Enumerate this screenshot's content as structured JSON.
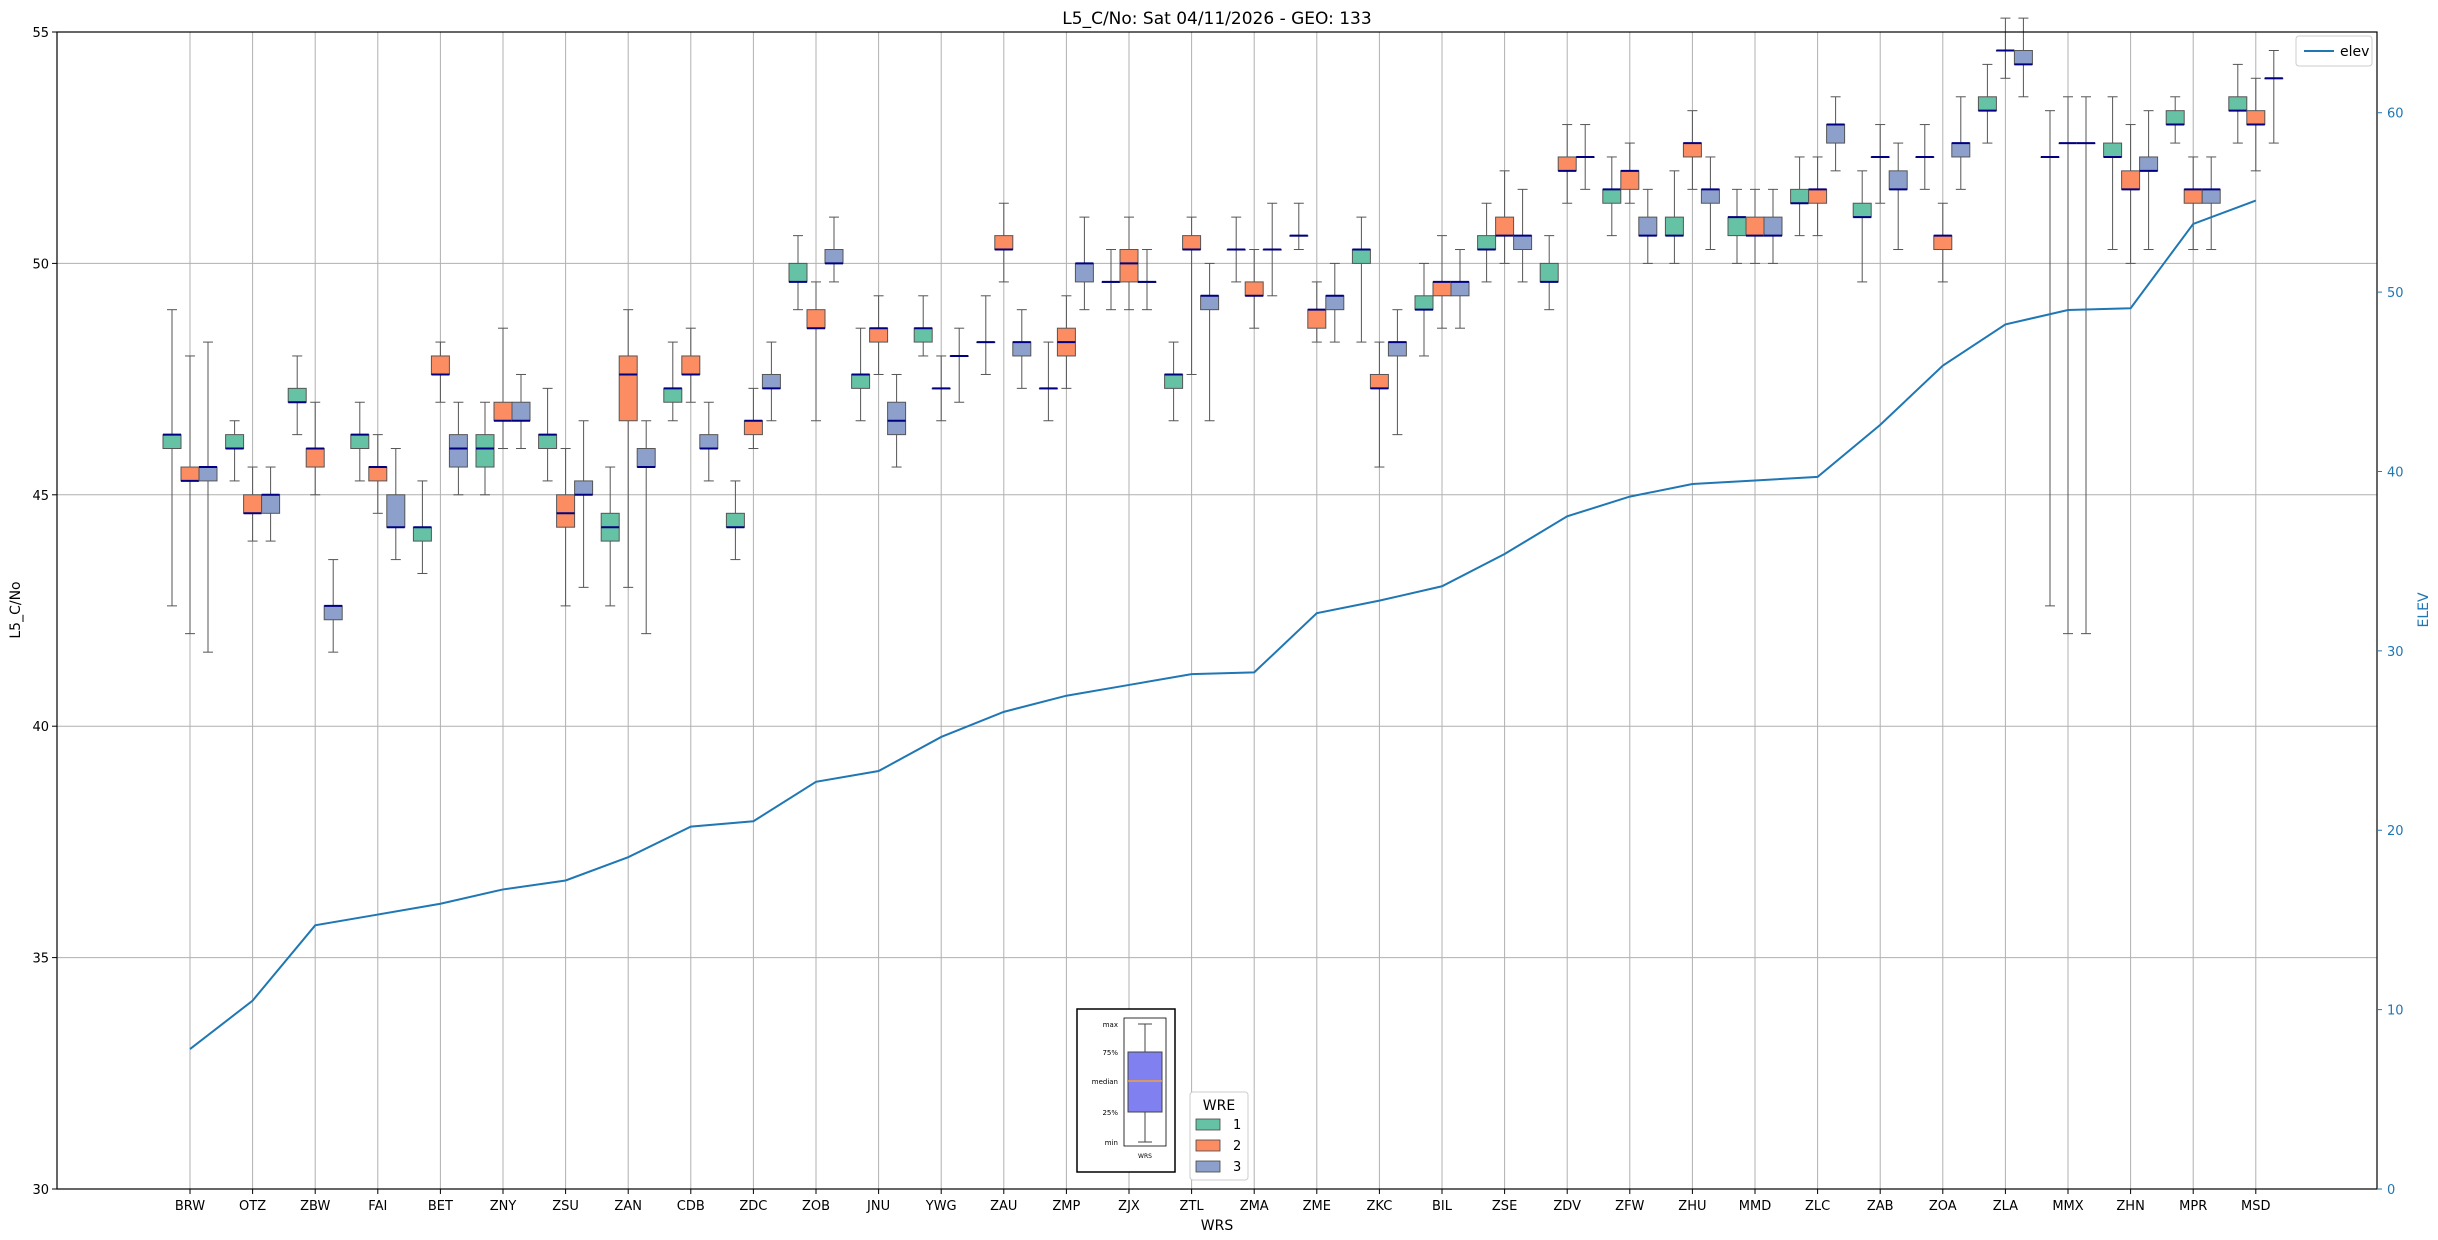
{
  "chart_data": {
    "type": "box",
    "title": "L5_C/No: Sat 04/11/2026 - GEO: 133",
    "xlabel": "WRS",
    "ylabel": "L5_C/No",
    "ylabel_right": "ELEV",
    "ylim": [
      30,
      55
    ],
    "ylim_right": [
      0,
      64.5
    ],
    "yticks": [
      30,
      35,
      40,
      45,
      50,
      55
    ],
    "yticks_right": [
      0,
      10,
      20,
      30,
      40,
      50,
      60
    ],
    "grid": true,
    "categories": [
      "BRW",
      "OTZ",
      "ZBW",
      "FAI",
      "BET",
      "ZNY",
      "ZSU",
      "ZAN",
      "CDB",
      "ZDC",
      "ZOB",
      "JNU",
      "YWG",
      "ZAU",
      "ZMP",
      "ZJX",
      "ZTL",
      "ZMA",
      "ZME",
      "ZKC",
      "BIL",
      "ZSE",
      "ZDV",
      "ZFW",
      "ZHU",
      "MMD",
      "ZLC",
      "ZAB",
      "ZOA",
      "ZLA",
      "MMX",
      "ZHN",
      "MPR",
      "MSD"
    ],
    "wre_colors": {
      "1": "#66c2a5",
      "2": "#fc8d62",
      "3": "#8da0cb"
    },
    "boxes": [
      {
        "station": "BRW",
        "wre": 1,
        "min": 42.6,
        "q1": 46.0,
        "median": 46.3,
        "q3": 46.3,
        "max": 49.0
      },
      {
        "station": "BRW",
        "wre": 2,
        "min": 42.0,
        "q1": 45.3,
        "median": 45.3,
        "q3": 45.6,
        "max": 48.0
      },
      {
        "station": "BRW",
        "wre": 3,
        "min": 41.6,
        "q1": 45.3,
        "median": 45.6,
        "q3": 45.6,
        "max": 48.3
      },
      {
        "station": "OTZ",
        "wre": 1,
        "min": 45.3,
        "q1": 46.0,
        "median": 46.0,
        "q3": 46.3,
        "max": 46.6
      },
      {
        "station": "OTZ",
        "wre": 2,
        "min": 44.0,
        "q1": 44.6,
        "median": 44.6,
        "q3": 45.0,
        "max": 45.6
      },
      {
        "station": "OTZ",
        "wre": 3,
        "min": 44.0,
        "q1": 44.6,
        "median": 45.0,
        "q3": 45.0,
        "max": 45.6
      },
      {
        "station": "ZBW",
        "wre": 1,
        "min": 46.3,
        "q1": 47.0,
        "median": 47.0,
        "q3": 47.3,
        "max": 48.0
      },
      {
        "station": "ZBW",
        "wre": 2,
        "min": 45.0,
        "q1": 45.6,
        "median": 46.0,
        "q3": 46.0,
        "max": 47.0
      },
      {
        "station": "ZBW",
        "wre": 3,
        "min": 41.6,
        "q1": 42.3,
        "median": 42.6,
        "q3": 42.6,
        "max": 43.6
      },
      {
        "station": "FAI",
        "wre": 1,
        "min": 45.3,
        "q1": 46.0,
        "median": 46.3,
        "q3": 46.3,
        "max": 47.0
      },
      {
        "station": "FAI",
        "wre": 2,
        "min": 44.6,
        "q1": 45.3,
        "median": 45.6,
        "q3": 45.6,
        "max": 46.3
      },
      {
        "station": "FAI",
        "wre": 3,
        "min": 43.6,
        "q1": 44.3,
        "median": 44.3,
        "q3": 45.0,
        "max": 46.0
      },
      {
        "station": "BET",
        "wre": 1,
        "min": 43.3,
        "q1": 44.0,
        "median": 44.3,
        "q3": 44.3,
        "max": 45.3
      },
      {
        "station": "BET",
        "wre": 2,
        "min": 47.0,
        "q1": 47.6,
        "median": 47.6,
        "q3": 48.0,
        "max": 48.3
      },
      {
        "station": "BET",
        "wre": 3,
        "min": 45.0,
        "q1": 45.6,
        "median": 46.0,
        "q3": 46.3,
        "max": 47.0
      },
      {
        "station": "ZNY",
        "wre": 1,
        "min": 45.0,
        "q1": 45.6,
        "median": 46.0,
        "q3": 46.3,
        "max": 47.0
      },
      {
        "station": "ZNY",
        "wre": 2,
        "min": 46.0,
        "q1": 46.6,
        "median": 46.6,
        "q3": 47.0,
        "max": 48.6
      },
      {
        "station": "ZNY",
        "wre": 3,
        "min": 46.0,
        "q1": 46.6,
        "median": 46.6,
        "q3": 47.0,
        "max": 47.6
      },
      {
        "station": "ZSU",
        "wre": 1,
        "min": 45.3,
        "q1": 46.0,
        "median": 46.3,
        "q3": 46.3,
        "max": 47.3
      },
      {
        "station": "ZSU",
        "wre": 2,
        "min": 42.6,
        "q1": 44.3,
        "median": 44.6,
        "q3": 45.0,
        "max": 46.0
      },
      {
        "station": "ZSU",
        "wre": 3,
        "min": 43.0,
        "q1": 45.0,
        "median": 45.0,
        "q3": 45.3,
        "max": 46.6
      },
      {
        "station": "ZAN",
        "wre": 1,
        "min": 42.6,
        "q1": 44.0,
        "median": 44.3,
        "q3": 44.6,
        "max": 45.6
      },
      {
        "station": "ZAN",
        "wre": 2,
        "min": 43.0,
        "q1": 46.6,
        "median": 47.6,
        "q3": 48.0,
        "max": 49.0
      },
      {
        "station": "ZAN",
        "wre": 3,
        "min": 42.0,
        "q1": 45.6,
        "median": 45.6,
        "q3": 46.0,
        "max": 46.6
      },
      {
        "station": "CDB",
        "wre": 1,
        "min": 46.6,
        "q1": 47.0,
        "median": 47.3,
        "q3": 47.3,
        "max": 48.3
      },
      {
        "station": "CDB",
        "wre": 2,
        "min": 47.0,
        "q1": 47.6,
        "median": 47.6,
        "q3": 48.0,
        "max": 48.6
      },
      {
        "station": "CDB",
        "wre": 3,
        "min": 45.3,
        "q1": 46.0,
        "median": 46.0,
        "q3": 46.3,
        "max": 47.0
      },
      {
        "station": "ZDC",
        "wre": 1,
        "min": 43.6,
        "q1": 44.3,
        "median": 44.3,
        "q3": 44.6,
        "max": 45.3
      },
      {
        "station": "ZDC",
        "wre": 2,
        "min": 46.0,
        "q1": 46.3,
        "median": 46.6,
        "q3": 46.6,
        "max": 47.3
      },
      {
        "station": "ZDC",
        "wre": 3,
        "min": 46.6,
        "q1": 47.3,
        "median": 47.3,
        "q3": 47.6,
        "max": 48.3
      },
      {
        "station": "ZOB",
        "wre": 1,
        "min": 49.0,
        "q1": 49.6,
        "median": 49.6,
        "q3": 50.0,
        "max": 50.6
      },
      {
        "station": "ZOB",
        "wre": 2,
        "min": 46.6,
        "q1": 48.6,
        "median": 48.6,
        "q3": 49.0,
        "max": 49.6
      },
      {
        "station": "ZOB",
        "wre": 3,
        "min": 49.6,
        "q1": 50.0,
        "median": 50.0,
        "q3": 50.3,
        "max": 51.0
      },
      {
        "station": "JNU",
        "wre": 1,
        "min": 46.6,
        "q1": 47.3,
        "median": 47.6,
        "q3": 47.6,
        "max": 48.6
      },
      {
        "station": "JNU",
        "wre": 2,
        "min": 47.6,
        "q1": 48.3,
        "median": 48.6,
        "q3": 48.6,
        "max": 49.3
      },
      {
        "station": "JNU",
        "wre": 3,
        "min": 45.6,
        "q1": 46.3,
        "median": 46.6,
        "q3": 47.0,
        "max": 47.6
      },
      {
        "station": "YWG",
        "wre": 1,
        "min": 48.0,
        "q1": 48.3,
        "median": 48.6,
        "q3": 48.6,
        "max": 49.3
      },
      {
        "station": "YWG",
        "wre": 2,
        "min": 46.6,
        "q1": 47.3,
        "median": 47.3,
        "q3": 47.3,
        "max": 48.0
      },
      {
        "station": "YWG",
        "wre": 3,
        "min": 47.0,
        "q1": 48.0,
        "median": 48.0,
        "q3": 48.0,
        "max": 48.6
      },
      {
        "station": "ZAU",
        "wre": 1,
        "min": 47.6,
        "q1": 48.3,
        "median": 48.3,
        "q3": 48.3,
        "max": 49.3
      },
      {
        "station": "ZAU",
        "wre": 2,
        "min": 49.6,
        "q1": 50.3,
        "median": 50.3,
        "q3": 50.6,
        "max": 51.3
      },
      {
        "station": "ZAU",
        "wre": 3,
        "min": 47.3,
        "q1": 48.0,
        "median": 48.3,
        "q3": 48.3,
        "max": 49.0
      },
      {
        "station": "ZMP",
        "wre": 1,
        "min": 46.6,
        "q1": 47.3,
        "median": 47.3,
        "q3": 47.3,
        "max": 48.3
      },
      {
        "station": "ZMP",
        "wre": 2,
        "min": 47.3,
        "q1": 48.0,
        "median": 48.3,
        "q3": 48.6,
        "max": 49.3
      },
      {
        "station": "ZMP",
        "wre": 3,
        "min": 49.0,
        "q1": 49.6,
        "median": 50.0,
        "q3": 50.0,
        "max": 51.0
      },
      {
        "station": "ZJX",
        "wre": 1,
        "min": 49.0,
        "q1": 49.6,
        "median": 49.6,
        "q3": 49.6,
        "max": 50.3
      },
      {
        "station": "ZJX",
        "wre": 2,
        "min": 49.0,
        "q1": 49.6,
        "median": 50.0,
        "q3": 50.3,
        "max": 51.0
      },
      {
        "station": "ZJX",
        "wre": 3,
        "min": 49.0,
        "q1": 49.6,
        "median": 49.6,
        "q3": 49.6,
        "max": 50.3
      },
      {
        "station": "ZTL",
        "wre": 1,
        "min": 46.6,
        "q1": 47.3,
        "median": 47.6,
        "q3": 47.6,
        "max": 48.3
      },
      {
        "station": "ZTL",
        "wre": 2,
        "min": 47.6,
        "q1": 50.3,
        "median": 50.3,
        "q3": 50.6,
        "max": 51.0
      },
      {
        "station": "ZTL",
        "wre": 3,
        "min": 46.6,
        "q1": 49.0,
        "median": 49.3,
        "q3": 49.3,
        "max": 50.0
      },
      {
        "station": "ZMA",
        "wre": 1,
        "min": 49.6,
        "q1": 50.3,
        "median": 50.3,
        "q3": 50.3,
        "max": 51.0
      },
      {
        "station": "ZMA",
        "wre": 2,
        "min": 48.6,
        "q1": 49.3,
        "median": 49.3,
        "q3": 49.6,
        "max": 50.3
      },
      {
        "station": "ZMA",
        "wre": 3,
        "min": 49.3,
        "q1": 50.3,
        "median": 50.3,
        "q3": 50.3,
        "max": 51.3
      },
      {
        "station": "ZME",
        "wre": 1,
        "min": 50.3,
        "q1": 50.6,
        "median": 50.6,
        "q3": 50.6,
        "max": 51.3
      },
      {
        "station": "ZME",
        "wre": 2,
        "min": 48.3,
        "q1": 48.6,
        "median": 49.0,
        "q3": 49.0,
        "max": 49.6
      },
      {
        "station": "ZME",
        "wre": 3,
        "min": 48.3,
        "q1": 49.0,
        "median": 49.3,
        "q3": 49.3,
        "max": 50.0
      },
      {
        "station": "ZKC",
        "wre": 1,
        "min": 48.3,
        "q1": 50.0,
        "median": 50.3,
        "q3": 50.3,
        "max": 51.0
      },
      {
        "station": "ZKC",
        "wre": 2,
        "min": 45.6,
        "q1": 47.3,
        "median": 47.3,
        "q3": 47.6,
        "max": 48.3
      },
      {
        "station": "ZKC",
        "wre": 3,
        "min": 46.3,
        "q1": 48.0,
        "median": 48.3,
        "q3": 48.3,
        "max": 49.0
      },
      {
        "station": "BIL",
        "wre": 1,
        "min": 48.0,
        "q1": 49.0,
        "median": 49.0,
        "q3": 49.3,
        "max": 50.0
      },
      {
        "station": "BIL",
        "wre": 2,
        "min": 48.6,
        "q1": 49.3,
        "median": 49.6,
        "q3": 49.6,
        "max": 50.6
      },
      {
        "station": "BIL",
        "wre": 3,
        "min": 48.6,
        "q1": 49.3,
        "median": 49.6,
        "q3": 49.6,
        "max": 50.3
      },
      {
        "station": "ZSE",
        "wre": 1,
        "min": 49.6,
        "q1": 50.3,
        "median": 50.3,
        "q3": 50.6,
        "max": 51.3
      },
      {
        "station": "ZSE",
        "wre": 2,
        "min": 50.0,
        "q1": 50.6,
        "median": 50.6,
        "q3": 51.0,
        "max": 52.0
      },
      {
        "station": "ZSE",
        "wre": 3,
        "min": 49.6,
        "q1": 50.3,
        "median": 50.6,
        "q3": 50.6,
        "max": 51.6
      },
      {
        "station": "ZDV",
        "wre": 1,
        "min": 49.0,
        "q1": 49.6,
        "median": 49.6,
        "q3": 50.0,
        "max": 50.6
      },
      {
        "station": "ZDV",
        "wre": 2,
        "min": 51.3,
        "q1": 52.0,
        "median": 52.0,
        "q3": 52.3,
        "max": 53.0
      },
      {
        "station": "ZDV",
        "wre": 3,
        "min": 51.6,
        "q1": 52.3,
        "median": 52.3,
        "q3": 52.3,
        "max": 53.0
      },
      {
        "station": "ZFW",
        "wre": 1,
        "min": 50.6,
        "q1": 51.3,
        "median": 51.6,
        "q3": 51.6,
        "max": 52.3
      },
      {
        "station": "ZFW",
        "wre": 2,
        "min": 51.3,
        "q1": 51.6,
        "median": 52.0,
        "q3": 52.0,
        "max": 52.6
      },
      {
        "station": "ZFW",
        "wre": 3,
        "min": 50.0,
        "q1": 50.6,
        "median": 50.6,
        "q3": 51.0,
        "max": 51.6
      },
      {
        "station": "ZHU",
        "wre": 1,
        "min": 50.0,
        "q1": 50.6,
        "median": 50.6,
        "q3": 51.0,
        "max": 52.0
      },
      {
        "station": "ZHU",
        "wre": 2,
        "min": 51.6,
        "q1": 52.3,
        "median": 52.6,
        "q3": 52.6,
        "max": 53.3
      },
      {
        "station": "ZHU",
        "wre": 3,
        "min": 50.3,
        "q1": 51.3,
        "median": 51.6,
        "q3": 51.6,
        "max": 52.3
      },
      {
        "station": "MMD",
        "wre": 1,
        "min": 50.0,
        "q1": 50.6,
        "median": 51.0,
        "q3": 51.0,
        "max": 51.6
      },
      {
        "station": "MMD",
        "wre": 2,
        "min": 50.0,
        "q1": 50.6,
        "median": 50.6,
        "q3": 51.0,
        "max": 51.6
      },
      {
        "station": "MMD",
        "wre": 3,
        "min": 50.0,
        "q1": 50.6,
        "median": 50.6,
        "q3": 51.0,
        "max": 51.6
      },
      {
        "station": "ZLC",
        "wre": 1,
        "min": 50.6,
        "q1": 51.3,
        "median": 51.3,
        "q3": 51.6,
        "max": 52.3
      },
      {
        "station": "ZLC",
        "wre": 2,
        "min": 50.6,
        "q1": 51.3,
        "median": 51.6,
        "q3": 51.6,
        "max": 52.3
      },
      {
        "station": "ZLC",
        "wre": 3,
        "min": 52.0,
        "q1": 52.6,
        "median": 53.0,
        "q3": 53.0,
        "max": 53.6
      },
      {
        "station": "ZAB",
        "wre": 1,
        "min": 49.6,
        "q1": 51.0,
        "median": 51.0,
        "q3": 51.3,
        "max": 52.0
      },
      {
        "station": "ZAB",
        "wre": 2,
        "min": 51.3,
        "q1": 52.3,
        "median": 52.3,
        "q3": 52.3,
        "max": 53.0
      },
      {
        "station": "ZAB",
        "wre": 3,
        "min": 50.3,
        "q1": 51.6,
        "median": 51.6,
        "q3": 52.0,
        "max": 52.6
      },
      {
        "station": "ZOA",
        "wre": 1,
        "min": 51.6,
        "q1": 52.3,
        "median": 52.3,
        "q3": 52.3,
        "max": 53.0
      },
      {
        "station": "ZOA",
        "wre": 2,
        "min": 49.6,
        "q1": 50.3,
        "median": 50.6,
        "q3": 50.6,
        "max": 51.3
      },
      {
        "station": "ZOA",
        "wre": 3,
        "min": 51.6,
        "q1": 52.3,
        "median": 52.6,
        "q3": 52.6,
        "max": 53.6
      },
      {
        "station": "ZLA",
        "wre": 1,
        "min": 52.6,
        "q1": 53.3,
        "median": 53.3,
        "q3": 53.6,
        "max": 54.3
      },
      {
        "station": "ZLA",
        "wre": 2,
        "min": 54.0,
        "q1": 54.6,
        "median": 54.6,
        "q3": 54.6,
        "max": 55.3
      },
      {
        "station": "ZLA",
        "wre": 3,
        "min": 53.6,
        "q1": 54.3,
        "median": 54.3,
        "q3": 54.6,
        "max": 55.3
      },
      {
        "station": "MMX",
        "wre": 1,
        "min": 42.6,
        "q1": 52.3,
        "median": 52.3,
        "q3": 52.3,
        "max": 53.3
      },
      {
        "station": "MMX",
        "wre": 2,
        "min": 42.0,
        "q1": 52.6,
        "median": 52.6,
        "q3": 52.6,
        "max": 53.6
      },
      {
        "station": "MMX",
        "wre": 3,
        "min": 42.0,
        "q1": 52.6,
        "median": 52.6,
        "q3": 52.6,
        "max": 53.6
      },
      {
        "station": "ZHN",
        "wre": 1,
        "min": 50.3,
        "q1": 52.3,
        "median": 52.3,
        "q3": 52.6,
        "max": 53.6
      },
      {
        "station": "ZHN",
        "wre": 2,
        "min": 50.0,
        "q1": 51.6,
        "median": 51.6,
        "q3": 52.0,
        "max": 53.0
      },
      {
        "station": "ZHN",
        "wre": 3,
        "min": 50.3,
        "q1": 52.0,
        "median": 52.0,
        "q3": 52.3,
        "max": 53.3
      },
      {
        "station": "MPR",
        "wre": 1,
        "min": 52.6,
        "q1": 53.0,
        "median": 53.0,
        "q3": 53.3,
        "max": 53.6
      },
      {
        "station": "MPR",
        "wre": 2,
        "min": 50.3,
        "q1": 51.3,
        "median": 51.6,
        "q3": 51.6,
        "max": 52.3
      },
      {
        "station": "MPR",
        "wre": 3,
        "min": 50.3,
        "q1": 51.3,
        "median": 51.6,
        "q3": 51.6,
        "max": 52.3
      },
      {
        "station": "MSD",
        "wre": 1,
        "min": 52.6,
        "q1": 53.3,
        "median": 53.3,
        "q3": 53.6,
        "max": 54.3
      },
      {
        "station": "MSD",
        "wre": 2,
        "min": 52.0,
        "q1": 53.0,
        "median": 53.0,
        "q3": 53.3,
        "max": 54.0
      },
      {
        "station": "MSD",
        "wre": 3,
        "min": 52.6,
        "q1": 54.0,
        "median": 54.0,
        "q3": 54.0,
        "max": 54.6
      }
    ],
    "elev_series": {
      "name": "elev",
      "axis": "right",
      "color": "#1f77b4",
      "values": [
        7.8,
        10.5,
        14.7,
        15.3,
        15.9,
        16.7,
        17.2,
        18.5,
        20.2,
        20.5,
        22.7,
        23.3,
        25.2,
        26.6,
        27.5,
        28.1,
        28.7,
        28.8,
        32.1,
        32.8,
        33.6,
        35.4,
        37.5,
        38.6,
        39.3,
        39.5,
        39.7,
        42.6,
        45.9,
        48.2,
        49.0,
        49.1,
        53.8,
        55.1
      ]
    },
    "legend_elev": {
      "label": "elev",
      "placement": "top-right"
    },
    "legend_wre": {
      "title": "WRE",
      "entries": [
        "1",
        "2",
        "3"
      ],
      "placement": "bottom-center"
    },
    "inset": {
      "labels": [
        "max",
        "75%",
        "median",
        "25%",
        "min"
      ],
      "xlabel": "WRS",
      "box_color": "#8080f0",
      "placement": "bottom-center"
    }
  }
}
